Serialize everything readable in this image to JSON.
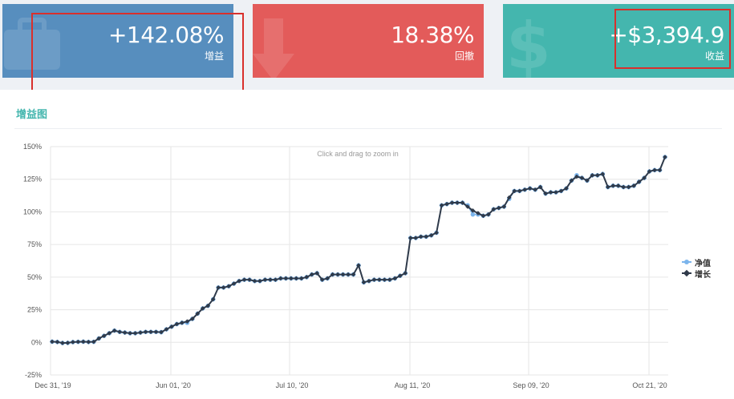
{
  "stats": [
    {
      "value": "+142.08%",
      "label": "增益",
      "color": "#578ebe",
      "icon": "briefcase-icon"
    },
    {
      "value": "18.38%",
      "label": "回撤",
      "color": "#e35b5a",
      "icon": "arrow-down-icon"
    },
    {
      "value": "+$3,394.9",
      "label": "收益",
      "color": "#44b6ae",
      "icon": "dollar-icon"
    }
  ],
  "panel": {
    "title": "增益图"
  },
  "chart_data": {
    "type": "line",
    "zoom_hint": "Click and drag to zoom in",
    "y_ticks": [
      "150%",
      "125%",
      "100%",
      "75%",
      "50%",
      "25%",
      "0%",
      "-25%"
    ],
    "ylim": [
      -25,
      150
    ],
    "x_ticks": [
      "Dec 31, '19",
      "Jun 01, '20",
      "Jul 10, '20",
      "Aug 11, '20",
      "Sep 09, '20",
      "Oct 21, '20"
    ],
    "legend": {
      "position": "right"
    },
    "series": [
      {
        "name": "净值",
        "color": "#7cb5ec",
        "values": [
          0.5,
          0.3,
          -0.5,
          -0.4,
          0.2,
          0.4,
          0.5,
          0.3,
          0.4,
          3,
          5,
          7,
          9,
          8,
          7.5,
          7,
          7,
          7.5,
          8,
          8,
          8,
          7.8,
          10,
          12,
          14,
          15,
          15,
          18,
          22,
          26,
          28,
          33,
          42,
          42,
          43,
          45,
          47,
          48,
          48,
          47,
          47,
          48,
          48,
          48,
          49,
          49,
          49,
          49,
          49,
          50,
          52,
          53,
          48,
          49,
          52,
          52,
          52,
          52,
          52,
          59,
          46,
          47,
          48,
          48,
          48,
          48,
          49,
          51,
          53,
          80,
          80,
          81,
          81,
          82,
          84,
          105,
          106,
          107,
          107,
          107,
          105,
          98,
          98,
          97,
          98,
          102,
          103,
          104,
          110,
          116,
          116,
          117,
          118,
          117,
          119,
          114,
          115,
          115,
          116,
          118,
          124,
          128,
          126,
          124,
          128,
          128,
          129,
          119,
          120,
          120,
          119,
          119,
          120,
          123,
          126,
          131,
          132,
          132,
          142
        ]
      },
      {
        "name": "增长",
        "color": "#2f3a4a",
        "values": [
          0.5,
          0.3,
          -0.5,
          -0.4,
          0.2,
          0.4,
          0.5,
          0.3,
          0.4,
          3,
          5,
          7,
          9,
          8,
          7.5,
          7,
          7,
          7.5,
          8,
          8,
          8,
          7.8,
          10,
          12,
          14,
          15,
          16,
          18,
          22,
          26,
          28,
          33,
          42,
          42,
          43,
          45,
          47,
          48,
          48,
          47,
          47,
          48,
          48,
          48,
          49,
          49,
          49,
          49,
          49,
          50,
          52,
          53,
          48,
          49,
          52,
          52,
          52,
          52,
          52,
          59,
          46,
          47,
          48,
          48,
          48,
          48,
          49,
          51,
          53,
          80,
          80,
          81,
          81,
          82,
          84,
          105,
          106,
          107,
          107,
          107,
          104,
          101,
          99,
          97,
          98,
          102,
          103,
          104,
          111,
          116,
          116,
          117,
          118,
          117,
          119,
          114,
          115,
          115,
          116,
          118,
          124,
          127,
          126,
          124,
          128,
          128,
          129,
          119,
          120,
          120,
          119,
          119,
          120,
          123,
          126,
          131,
          132,
          132,
          142
        ]
      }
    ]
  }
}
